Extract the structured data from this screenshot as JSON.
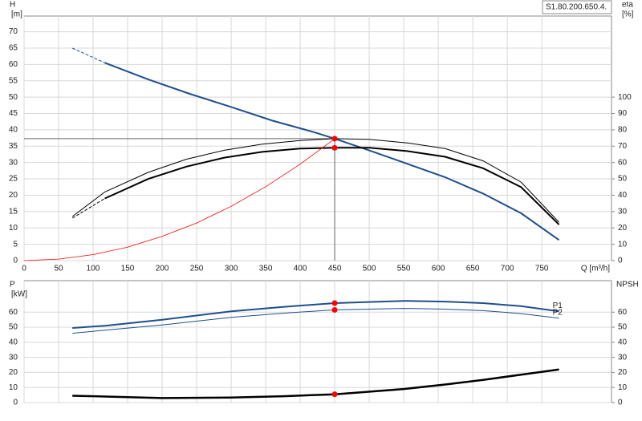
{
  "chart_data": [
    {
      "type": "line",
      "title": "S1.80.200.650.4.",
      "y_label": "H",
      "y_unit": "[m]",
      "y2_label": "eta",
      "y2_unit": "[%]",
      "x_label": "Q [m³/h]",
      "xlim": [
        0,
        851
      ],
      "xticks": [
        0,
        50,
        100,
        150,
        200,
        250,
        300,
        350,
        400,
        450,
        500,
        550,
        600,
        650,
        700,
        750
      ],
      "xtick_labels": true,
      "ylim": [
        0,
        74.8
      ],
      "yticks": [
        0,
        5,
        10,
        15,
        20,
        25,
        30,
        35,
        40,
        45,
        50,
        55,
        60,
        65,
        70
      ],
      "y2lim": [
        0,
        149.6
      ],
      "y2ticks": [
        0,
        10,
        20,
        30,
        40,
        50,
        60,
        70,
        80,
        90,
        100
      ],
      "grid": true,
      "series": [
        {
          "color": "#1f4e8c",
          "line_width": 1,
          "dash": true,
          "x": [
            70,
            117
          ],
          "values": [
            65,
            60.5
          ]
        },
        {
          "color": "#1f4e8c",
          "line_width": 2,
          "x": [
            117,
            180,
            240,
            300,
            360,
            420,
            450,
            500,
            550,
            610,
            665,
            720,
            775
          ],
          "values": [
            60.5,
            55.4,
            51,
            47,
            42.8,
            39.3,
            37.3,
            33.7,
            30,
            25.5,
            20.5,
            14.5,
            6.3
          ]
        },
        {
          "color": "#000000",
          "line_width": 1,
          "axis": "y2",
          "x": [
            70,
            117,
            180,
            235,
            290,
            345,
            400,
            450,
            500,
            555,
            610,
            665,
            720,
            775
          ],
          "values": [
            27,
            42,
            54,
            62,
            67.5,
            71.2,
            73.5,
            74.6,
            74.2,
            72,
            68.5,
            61,
            48,
            23.5
          ]
        },
        {
          "color": "#000000",
          "line_width": 1,
          "axis": "y2",
          "dash": true,
          "x": [
            70,
            117
          ],
          "values": [
            26,
            38
          ]
        },
        {
          "color": "#000000",
          "line_width": 2,
          "axis": "y2",
          "x": [
            117,
            180,
            235,
            290,
            345,
            400,
            450,
            500,
            555,
            610,
            665,
            720,
            775
          ],
          "values": [
            38,
            50,
            57.5,
            63,
            66.5,
            68.5,
            69,
            69,
            67,
            63.5,
            56.5,
            45,
            22
          ]
        },
        {
          "color": "#ff0000",
          "line_width": 0.8,
          "x": [
            0,
            50,
            100,
            150,
            200,
            250,
            300,
            350,
            400,
            450
          ],
          "values": [
            0,
            0.46,
            1.84,
            4.1,
            7.4,
            11.5,
            16.6,
            22.6,
            29.5,
            37.3
          ]
        }
      ],
      "duty_point": {
        "x": 450,
        "y": 37.3,
        "y2": 69
      }
    },
    {
      "type": "line",
      "y_label": "P",
      "y_unit": "[kW]",
      "y2_label": "NPSH",
      "xlim": [
        0,
        851
      ],
      "xticks": [
        0,
        50,
        100,
        150,
        200,
        250,
        300,
        350,
        400,
        450,
        500,
        550,
        600,
        650,
        700,
        750
      ],
      "xtick_labels": false,
      "ylim": [
        0,
        80.9
      ],
      "yticks": [
        0,
        10,
        20,
        30,
        40,
        50,
        60
      ],
      "y2lim": [
        0,
        80.9
      ],
      "y2ticks": [
        0,
        10,
        20,
        30,
        40,
        50,
        60
      ],
      "grid": true,
      "series": [
        {
          "name": "P1",
          "color": "#1f4e8c",
          "line_width": 2,
          "x": [
            70,
            117,
            200,
            300,
            375,
            450,
            550,
            610,
            665,
            720,
            775
          ],
          "values": [
            49.5,
            51,
            55,
            60.5,
            63.5,
            66,
            67.5,
            67,
            66,
            64,
            60.5
          ]
        },
        {
          "name": "P2",
          "color": "#1f4e8c",
          "line_width": 1,
          "x": [
            70,
            117,
            200,
            300,
            375,
            450,
            550,
            610,
            665,
            720,
            775
          ],
          "values": [
            46,
            48,
            51.5,
            56.5,
            59.3,
            61.5,
            62.5,
            62,
            61,
            59,
            56
          ]
        },
        {
          "color": "#000000",
          "line_width": 2.5,
          "axis": "y2",
          "x": [
            70,
            117,
            200,
            300,
            375,
            450,
            550,
            610,
            665,
            720,
            775
          ],
          "values": [
            4.5,
            4,
            3,
            3.3,
            4.2,
            5.5,
            9,
            12,
            15,
            18.5,
            22
          ]
        }
      ],
      "duty_point": {
        "x": 450,
        "values": [
          66,
          61.5
        ],
        "y2": 5.5
      }
    }
  ]
}
